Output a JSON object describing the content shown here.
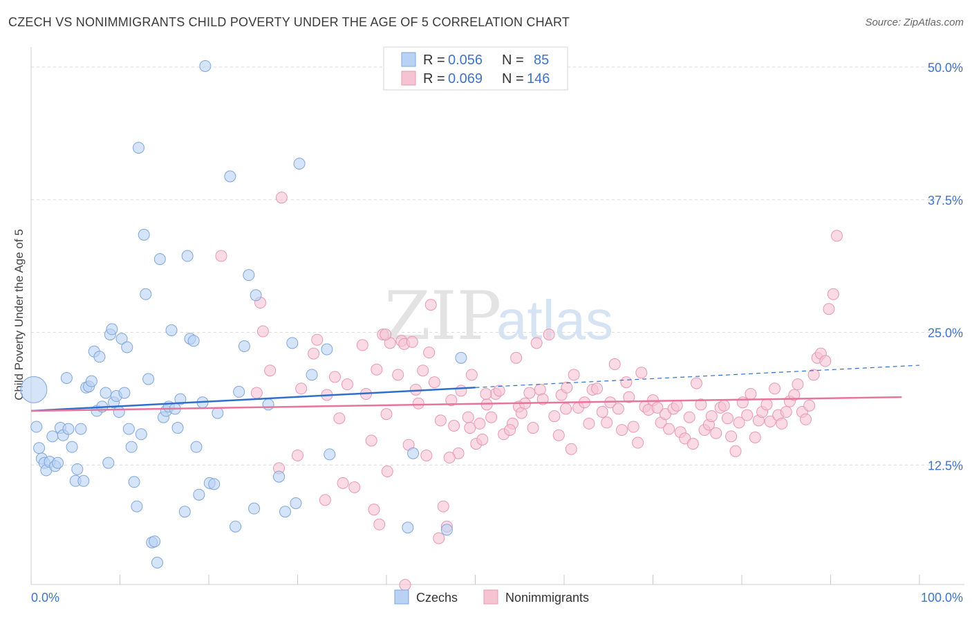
{
  "title": "CZECH VS NONIMMIGRANTS CHILD POVERTY UNDER THE AGE OF 5 CORRELATION CHART",
  "source": "Source: ZipAtlas.com",
  "watermark": {
    "zip": "ZIP",
    "atlas": "atlas"
  },
  "colors": {
    "blue_fill": "#b9d2f3",
    "blue_stroke": "#7ea6dc",
    "blue_line": "#2f6fcc",
    "pink_fill": "#f6c3d3",
    "pink_stroke": "#e897b2",
    "pink_line": "#e8739c",
    "axis_text": "#3f74c9",
    "grid": "#d9d9d9"
  },
  "legend_top": {
    "rows": [
      {
        "r_label": "R = ",
        "r_value": "0.056",
        "n_label": "N = ",
        "n_value": "85"
      },
      {
        "r_label": "R = ",
        "r_value": "0.069",
        "n_label": "N = ",
        "n_value": "146"
      }
    ]
  },
  "legend_bottom": [
    "Czechs",
    "Nonimmigrants"
  ],
  "chart_data": {
    "type": "scatter",
    "title": "CZECH VS NONIMMIGRANTS CHILD POVERTY UNDER THE AGE OF 5 CORRELATION CHART",
    "xlabel": "",
    "ylabel": "Child Poverty Under the Age of 5",
    "x_tick_labels": [
      "0.0%",
      "100.0%"
    ],
    "y_tick_labels": [
      "12.5%",
      "25.0%",
      "37.5%",
      "50.0%"
    ],
    "y_ticks": [
      12.5,
      25.0,
      37.5,
      50.0
    ],
    "xlim": [
      0,
      100
    ],
    "ylim": [
      0,
      50
    ],
    "grid": true,
    "series": [
      {
        "name": "Czechs",
        "R": 0.056,
        "N": 85,
        "trend": {
          "x0": 0,
          "y0": 17.6,
          "x1": 50,
          "y1": 19.8,
          "dash_to_x": 100,
          "dash_to_y": 21.9
        },
        "points": [
          [
            0.3,
            19.6
          ],
          [
            0.6,
            16.1
          ],
          [
            0.9,
            14.1
          ],
          [
            1.2,
            13.1
          ],
          [
            1.5,
            12.7
          ],
          [
            1.7,
            12.0
          ],
          [
            2.1,
            12.8
          ],
          [
            2.4,
            15.2
          ],
          [
            2.7,
            12.4
          ],
          [
            3.0,
            12.7
          ],
          [
            3.3,
            16.0
          ],
          [
            3.6,
            15.3
          ],
          [
            4.0,
            20.7
          ],
          [
            4.2,
            15.9
          ],
          [
            4.6,
            14.2
          ],
          [
            5.0,
            11.0
          ],
          [
            5.2,
            12.1
          ],
          [
            5.6,
            15.9
          ],
          [
            5.9,
            11.0
          ],
          [
            6.2,
            19.8
          ],
          [
            6.5,
            19.9
          ],
          [
            6.8,
            20.4
          ],
          [
            7.1,
            23.2
          ],
          [
            7.4,
            17.6
          ],
          [
            7.7,
            22.7
          ],
          [
            8.0,
            18.0
          ],
          [
            8.4,
            19.3
          ],
          [
            8.7,
            12.7
          ],
          [
            8.9,
            24.8
          ],
          [
            9.1,
            25.3
          ],
          [
            9.3,
            18.4
          ],
          [
            9.6,
            19.0
          ],
          [
            9.9,
            17.5
          ],
          [
            10.2,
            24.4
          ],
          [
            10.5,
            19.3
          ],
          [
            10.8,
            23.6
          ],
          [
            11.0,
            15.9
          ],
          [
            11.3,
            14.2
          ],
          [
            11.6,
            10.9
          ],
          [
            11.9,
            8.6
          ],
          [
            12.1,
            42.4
          ],
          [
            12.4,
            15.4
          ],
          [
            12.7,
            34.2
          ],
          [
            12.9,
            28.6
          ],
          [
            13.2,
            20.6
          ],
          [
            13.6,
            5.2
          ],
          [
            13.9,
            5.3
          ],
          [
            14.2,
            3.3
          ],
          [
            14.5,
            31.9
          ],
          [
            14.9,
            17.0
          ],
          [
            15.2,
            17.6
          ],
          [
            15.5,
            18.0
          ],
          [
            15.8,
            25.2
          ],
          [
            16.2,
            17.8
          ],
          [
            16.5,
            16.0
          ],
          [
            16.8,
            18.7
          ],
          [
            17.3,
            8.1
          ],
          [
            17.6,
            32.2
          ],
          [
            17.9,
            24.4
          ],
          [
            18.3,
            24.2
          ],
          [
            18.6,
            14.2
          ],
          [
            18.9,
            9.7
          ],
          [
            19.3,
            18.4
          ],
          [
            19.6,
            50.1
          ],
          [
            20.1,
            10.8
          ],
          [
            20.6,
            10.7
          ],
          [
            21.0,
            17.4
          ],
          [
            22.4,
            39.7
          ],
          [
            23.0,
            6.7
          ],
          [
            23.4,
            19.4
          ],
          [
            24.0,
            23.7
          ],
          [
            24.5,
            30.4
          ],
          [
            25.1,
            8.4
          ],
          [
            25.3,
            28.5
          ],
          [
            26.7,
            18.2
          ],
          [
            27.9,
            11.4
          ],
          [
            28.6,
            8.1
          ],
          [
            29.4,
            24.0
          ],
          [
            29.8,
            8.9
          ],
          [
            30.2,
            40.9
          ],
          [
            31.6,
            21.0
          ],
          [
            33.3,
            23.4
          ],
          [
            33.6,
            13.5
          ],
          [
            42.4,
            6.6
          ],
          [
            43.0,
            13.6
          ],
          [
            46.8,
            6.4
          ],
          [
            48.4,
            22.6
          ]
        ]
      },
      {
        "name": "Nonimmigrants",
        "R": 0.069,
        "N": 146,
        "trend": {
          "x0": 0,
          "y0": 17.6,
          "x1": 98,
          "y1": 18.9
        },
        "points": [
          [
            21.4,
            32.2
          ],
          [
            25.8,
            27.8
          ],
          [
            26.9,
            21.4
          ],
          [
            26.1,
            25.1
          ],
          [
            25.4,
            19.3
          ],
          [
            28.2,
            37.7
          ],
          [
            27.9,
            12.2
          ],
          [
            30.4,
            19.7
          ],
          [
            30.0,
            13.4
          ],
          [
            31.8,
            23.0
          ],
          [
            32.2,
            24.3
          ],
          [
            33.1,
            9.2
          ],
          [
            33.3,
            19.1
          ],
          [
            34.7,
            16.9
          ],
          [
            35.1,
            10.8
          ],
          [
            35.6,
            20.1
          ],
          [
            36.4,
            10.4
          ],
          [
            37.3,
            23.8
          ],
          [
            37.7,
            19.2
          ],
          [
            38.3,
            14.8
          ],
          [
            38.6,
            8.3
          ],
          [
            38.9,
            21.5
          ],
          [
            39.2,
            6.9
          ],
          [
            39.6,
            24.8
          ],
          [
            40.0,
            17.3
          ],
          [
            40.1,
            11.9
          ],
          [
            40.4,
            24.0
          ],
          [
            41.3,
            21.0
          ],
          [
            41.7,
            24.2
          ],
          [
            42.0,
            23.9
          ],
          [
            42.1,
            1.2
          ],
          [
            42.5,
            14.4
          ],
          [
            42.9,
            24.1
          ],
          [
            43.3,
            19.6
          ],
          [
            43.6,
            18.3
          ],
          [
            44.1,
            21.4
          ],
          [
            44.5,
            13.4
          ],
          [
            44.8,
            23.1
          ],
          [
            45.0,
            27.6
          ],
          [
            45.4,
            20.3
          ],
          [
            45.9,
            5.6
          ],
          [
            46.1,
            16.7
          ],
          [
            46.4,
            8.6
          ],
          [
            46.8,
            6.7
          ],
          [
            47.3,
            18.6
          ],
          [
            47.6,
            16.2
          ],
          [
            48.1,
            13.6
          ],
          [
            48.4,
            19.5
          ],
          [
            49.2,
            17.0
          ],
          [
            49.4,
            16.0
          ],
          [
            49.6,
            21.0
          ],
          [
            50.1,
            14.5
          ],
          [
            50.5,
            16.4
          ],
          [
            50.8,
            14.9
          ],
          [
            51.3,
            18.2
          ],
          [
            51.8,
            17.0
          ],
          [
            52.3,
            19.2
          ],
          [
            52.7,
            19.5
          ],
          [
            53.2,
            15.4
          ],
          [
            54.2,
            16.4
          ],
          [
            54.6,
            22.6
          ],
          [
            54.9,
            18.0
          ],
          [
            55.2,
            17.4
          ],
          [
            55.6,
            18.3
          ],
          [
            56.1,
            19.3
          ],
          [
            56.5,
            16.0
          ],
          [
            56.9,
            24.0
          ],
          [
            57.3,
            19.6
          ],
          [
            57.6,
            18.7
          ],
          [
            58.3,
            24.8
          ],
          [
            58.9,
            17.1
          ],
          [
            59.4,
            15.3
          ],
          [
            59.7,
            19.1
          ],
          [
            60.2,
            17.8
          ],
          [
            60.8,
            14.0
          ],
          [
            61.1,
            21.0
          ],
          [
            61.6,
            17.9
          ],
          [
            62.3,
            18.4
          ],
          [
            62.8,
            16.4
          ],
          [
            63.2,
            19.6
          ],
          [
            63.7,
            19.7
          ],
          [
            64.3,
            17.5
          ],
          [
            64.8,
            16.5
          ],
          [
            65.2,
            18.4
          ],
          [
            65.7,
            22.0
          ],
          [
            66.1,
            17.8
          ],
          [
            66.5,
            15.8
          ],
          [
            67.0,
            20.3
          ],
          [
            67.3,
            18.9
          ],
          [
            67.8,
            16.1
          ],
          [
            68.3,
            14.6
          ],
          [
            68.7,
            21.2
          ],
          [
            69.1,
            18.0
          ],
          [
            69.5,
            17.7
          ],
          [
            70.0,
            18.6
          ],
          [
            70.5,
            17.9
          ],
          [
            70.9,
            16.5
          ],
          [
            71.4,
            17.3
          ],
          [
            71.8,
            15.9
          ],
          [
            72.3,
            17.8
          ],
          [
            72.7,
            18.1
          ],
          [
            73.1,
            15.6
          ],
          [
            73.6,
            15.0
          ],
          [
            74.1,
            17.0
          ],
          [
            74.5,
            14.5
          ],
          [
            74.9,
            20.2
          ],
          [
            75.4,
            18.2
          ],
          [
            75.8,
            15.8
          ],
          [
            76.3,
            16.3
          ],
          [
            76.6,
            17.1
          ],
          [
            77.1,
            15.5
          ],
          [
            77.6,
            17.9
          ],
          [
            78.0,
            18.1
          ],
          [
            78.4,
            16.9
          ],
          [
            78.8,
            15.2
          ],
          [
            79.3,
            13.8
          ],
          [
            79.7,
            16.5
          ],
          [
            80.1,
            18.4
          ],
          [
            80.6,
            17.2
          ],
          [
            81.0,
            19.2
          ],
          [
            81.5,
            15.1
          ],
          [
            81.9,
            16.7
          ],
          [
            82.3,
            17.5
          ],
          [
            82.8,
            18.2
          ],
          [
            83.2,
            16.6
          ],
          [
            83.7,
            19.7
          ],
          [
            84.1,
            17.2
          ],
          [
            84.5,
            16.4
          ],
          [
            85.0,
            17.5
          ],
          [
            85.4,
            18.5
          ],
          [
            85.9,
            19.1
          ],
          [
            86.3,
            20.1
          ],
          [
            86.8,
            17.5
          ],
          [
            87.2,
            16.8
          ],
          [
            87.6,
            18.1
          ],
          [
            88.1,
            21.0
          ],
          [
            88.5,
            22.6
          ],
          [
            88.9,
            23.0
          ],
          [
            89.4,
            22.3
          ],
          [
            89.8,
            27.2
          ],
          [
            90.3,
            28.6
          ],
          [
            90.7,
            34.1
          ],
          [
            60.3,
            19.8
          ],
          [
            53.9,
            15.8
          ],
          [
            51.2,
            19.2
          ],
          [
            39.9,
            24.8
          ],
          [
            47.1,
            13.2
          ],
          [
            34.2,
            20.8
          ]
        ]
      }
    ]
  }
}
